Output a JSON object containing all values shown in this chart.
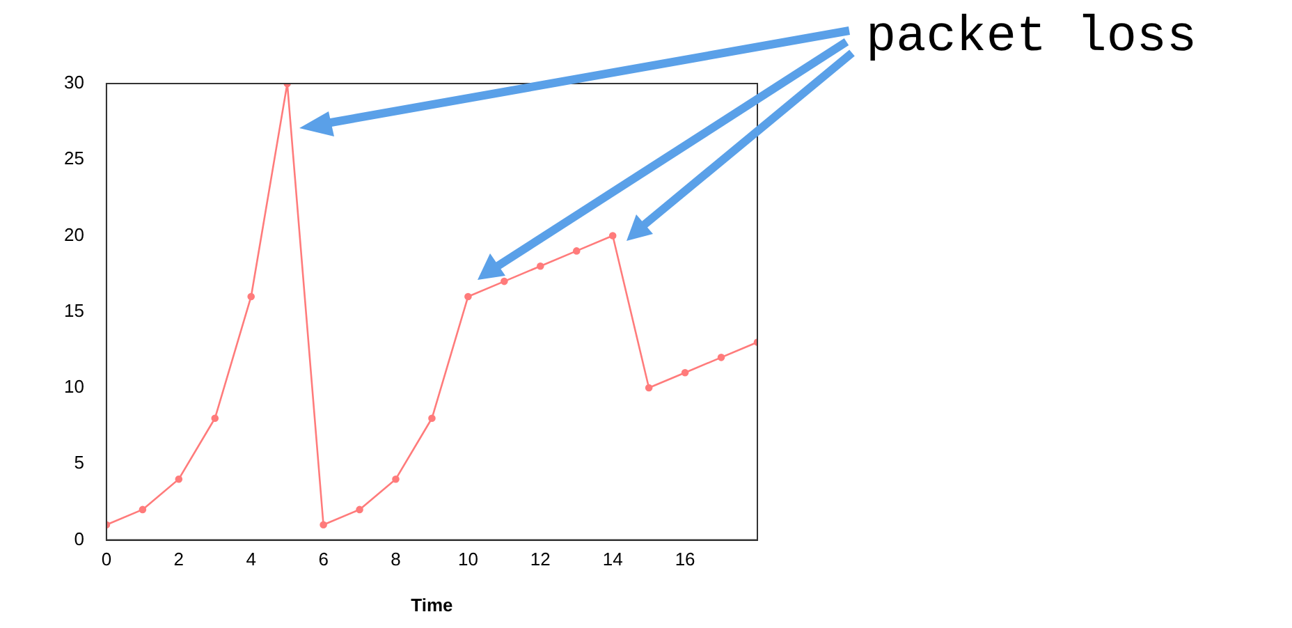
{
  "chart_data": {
    "type": "line",
    "xlabel": "Time",
    "annotations": [
      "packet loss"
    ],
    "x": [
      0,
      1,
      2,
      3,
      4,
      5,
      6,
      7,
      8,
      9,
      10,
      11,
      12,
      13,
      14,
      15,
      16,
      17,
      18
    ],
    "series": [
      {
        "color": "#ff7b7b",
        "values": [
          1,
          2,
          4,
          8,
          16,
          30,
          1,
          2,
          4,
          8,
          16,
          17,
          18,
          19,
          20,
          10,
          11,
          12,
          13
        ]
      }
    ],
    "xlim": [
      0,
      18
    ],
    "xticks": [
      0,
      2,
      4,
      6,
      8,
      10,
      12,
      14,
      16
    ],
    "ylim": [
      0,
      30
    ],
    "yticks": [
      0,
      5,
      10,
      15,
      20,
      25,
      30
    ],
    "grid": false,
    "legend": false,
    "marker": "circle",
    "line_style": "solid"
  }
}
